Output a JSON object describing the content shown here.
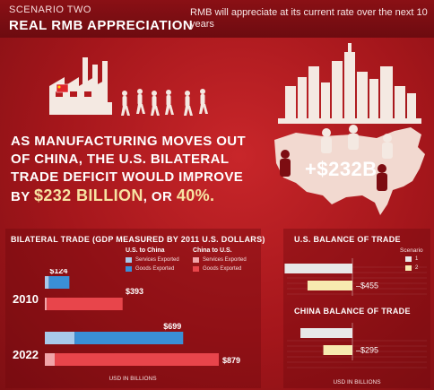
{
  "header": {
    "scenario": "SCENARIO TWO",
    "title": "REAL RMB APPRECIATION",
    "description": "RMB will appreciate at its current rate over the next 10 years"
  },
  "headline": {
    "line1": "AS MANUFACTURING MOVES OUT",
    "line2": "OF CHINA, THE U.S. BILATERAL",
    "line3": "TRADE DEFICIT WOULD IMPROVE",
    "by": "BY",
    "amount": "$232 BILLION",
    "or": ", OR",
    "percent": "40%."
  },
  "map_label": "+$232B",
  "colors": {
    "us_services": "#a8c9ea",
    "us_goods": "#3a8fd6",
    "china_services": "#f1a4a8",
    "china_goods": "#e8454b",
    "scenario1": "#e8e8e8",
    "scenario2": "#f7eab0"
  },
  "chart_data": [
    {
      "type": "bar",
      "title": "BILATERAL TRADE (GDP MEASURED BY 2011 U.S. DOLLARS)",
      "xlabel": "USD IN BILLIONS",
      "categories": [
        "2010",
        "2022"
      ],
      "legend": {
        "group1_title": "U.S. to China",
        "group2_title": "China to U.S.",
        "items": [
          "Services Exported",
          "Goods Exported",
          "Services Exported",
          "Goods Exported"
        ]
      },
      "series": [
        {
          "name": "U.S. to China",
          "total": [
            124,
            699
          ],
          "services": [
            20,
            150
          ],
          "goods": [
            104,
            549
          ],
          "labels": [
            "$124",
            "$699"
          ]
        },
        {
          "name": "China to U.S.",
          "total": [
            393,
            879
          ],
          "services": [
            10,
            50
          ],
          "goods": [
            383,
            829
          ],
          "labels": [
            "$393",
            "$879"
          ]
        }
      ],
      "xlim": [
        0,
        879
      ]
    },
    {
      "type": "bar",
      "title": "U.S. BALANCE OF TRADE",
      "legend_title": "Scenario",
      "legend_items": [
        "1",
        "2"
      ],
      "series": [
        {
          "name": "1",
          "values": [
            -687
          ]
        },
        {
          "name": "2",
          "values": [
            -455
          ]
        }
      ],
      "value_label": "–$455"
    },
    {
      "type": "bar",
      "title": "CHINA BALANCE OF TRADE",
      "xlabel": "USD IN BILLIONS",
      "series": [
        {
          "name": "1",
          "values": [
            -527
          ]
        },
        {
          "name": "2",
          "values": [
            -295
          ]
        }
      ],
      "value_label": "–$295"
    }
  ]
}
